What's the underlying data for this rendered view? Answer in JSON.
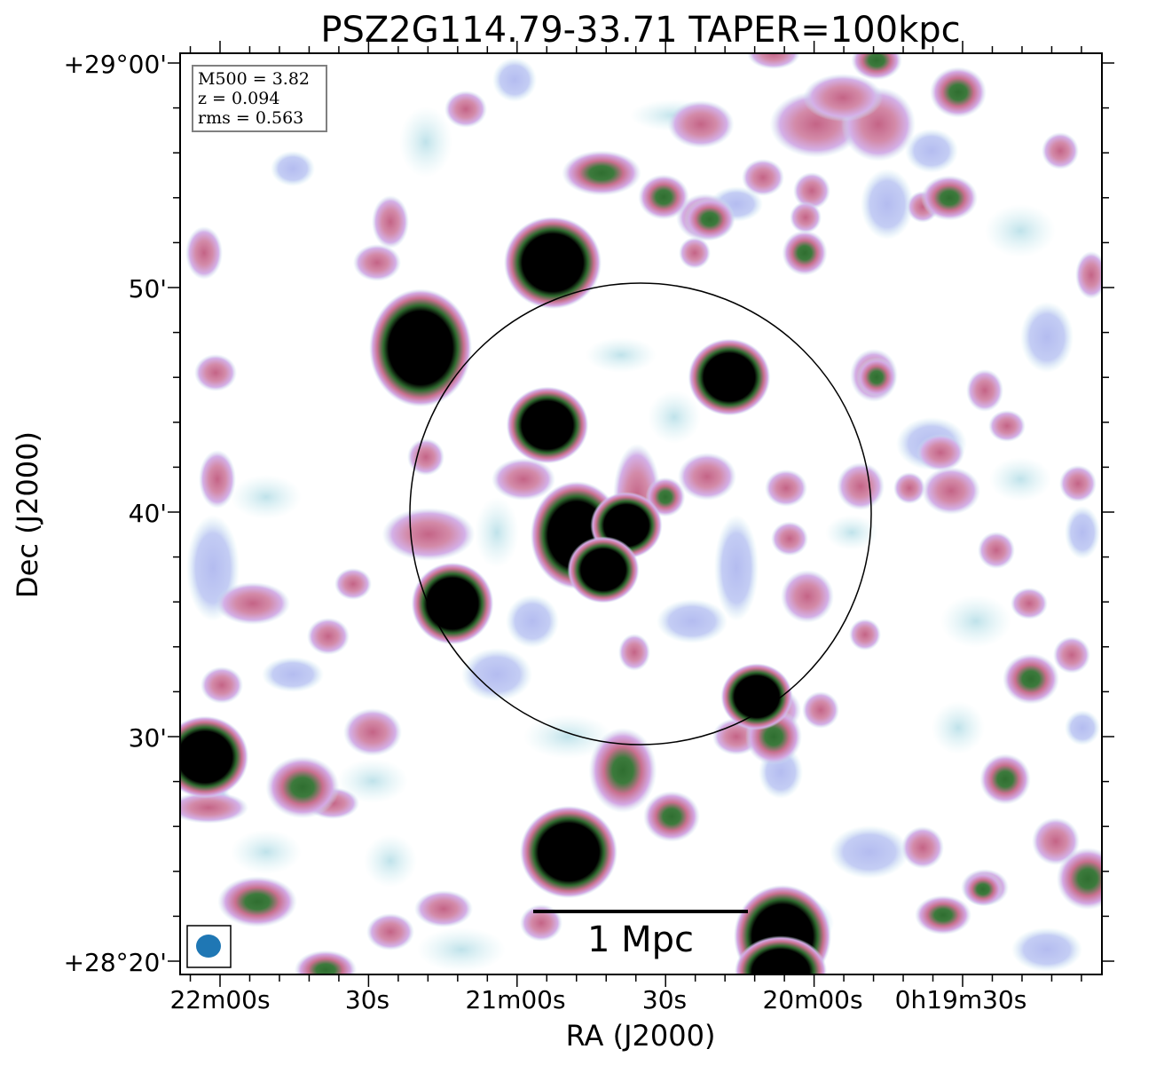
{
  "title": "PSZ2G114.79-33.71 TAPER=100kpc",
  "xlabel": "RA (J2000)",
  "ylabel": "Dec (J2000)",
  "x_ticks": [
    "22m00s",
    "30s",
    "21m00s",
    "30s",
    "20m00s",
    "0h19m30s"
  ],
  "y_ticks": [
    "+29°00'",
    "50'",
    "40'",
    "30'",
    "+28°20'"
  ],
  "info_box": {
    "mass": "M500 = 3.82",
    "redshift": "z = 0.094",
    "rms": "rms = 0.563"
  },
  "scale_bar": {
    "label": "1 Mpc"
  },
  "colors": {
    "faint": "#c8e6ee",
    "low": "#c0c6f2",
    "mid": "#d8a6e2",
    "pink": "#c8708e",
    "green": "#3c7a3c",
    "saturated": "#000000",
    "beam": "#1f77b4"
  },
  "icons": {
    "beam": "beam-ellipse-icon"
  }
}
